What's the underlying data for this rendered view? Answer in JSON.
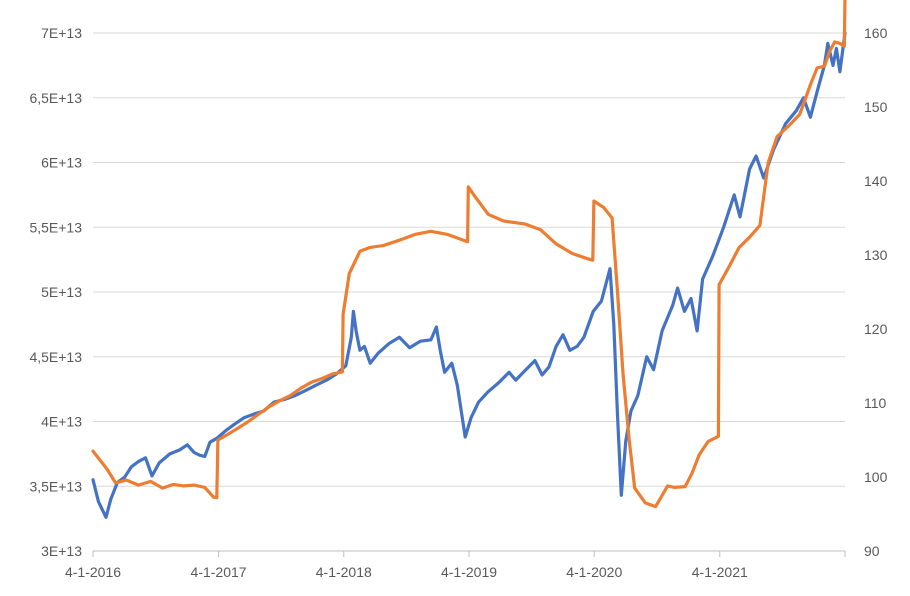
{
  "chart_data": {
    "type": "line",
    "title": "",
    "xlabel": "",
    "ylabel": "",
    "y2label": "",
    "grid": true,
    "legend": "none",
    "x_ticks": [
      "4-1-2016",
      "4-1-2017",
      "4-1-2018",
      "4-1-2019",
      "4-1-2020",
      "4-1-2021"
    ],
    "y_ticks": [
      "3E+13",
      "3,5E+13",
      "4E+13",
      "4,5E+13",
      "5E+13",
      "5,5E+13",
      "6E+13",
      "6,5E+13",
      "7E+13"
    ],
    "y2_ticks": [
      "90",
      "100",
      "110",
      "120",
      "130",
      "140",
      "150",
      "160"
    ],
    "ylim": [
      30000000000000,
      70000000000000
    ],
    "y2lim": [
      90,
      160
    ],
    "xlim": [
      "2016-01-04",
      "2022-01-04"
    ],
    "series": [
      {
        "axis": "left",
        "color": "#4472C4",
        "points": [
          [
            "2016-01-04",
            35500000000000.0
          ],
          [
            "2016-01-20",
            33800000000000.0
          ],
          [
            "2016-02-11",
            32600000000000.0
          ],
          [
            "2016-02-25",
            34000000000000.0
          ],
          [
            "2016-03-15",
            35300000000000.0
          ],
          [
            "2016-04-05",
            35700000000000.0
          ],
          [
            "2016-04-25",
            36500000000000.0
          ],
          [
            "2016-05-15",
            36900000000000.0
          ],
          [
            "2016-06-05",
            37200000000000.0
          ],
          [
            "2016-06-24",
            35800000000000.0
          ],
          [
            "2016-07-15",
            36800000000000.0
          ],
          [
            "2016-08-15",
            37500000000000.0
          ],
          [
            "2016-09-12",
            37800000000000.0
          ],
          [
            "2016-10-05",
            38200000000000.0
          ],
          [
            "2016-10-25",
            37600000000000.0
          ],
          [
            "2016-11-10",
            37400000000000.0
          ],
          [
            "2016-11-25",
            37300000000000.0
          ],
          [
            "2016-12-10",
            38400000000000.0
          ],
          [
            "2016-12-30",
            38700000000000.0
          ],
          [
            "2017-01-25",
            39300000000000.0
          ],
          [
            "2017-02-20",
            39800000000000.0
          ],
          [
            "2017-03-20",
            40300000000000.0
          ],
          [
            "2017-04-20",
            40600000000000.0
          ],
          [
            "2017-05-15",
            40800000000000.0
          ],
          [
            "2017-06-15",
            41500000000000.0
          ],
          [
            "2017-07-15",
            41700000000000.0
          ],
          [
            "2017-08-15",
            42000000000000.0
          ],
          [
            "2017-09-15",
            42400000000000.0
          ],
          [
            "2017-10-15",
            42800000000000.0
          ],
          [
            "2017-11-15",
            43200000000000.0
          ],
          [
            "2017-12-15",
            43700000000000.0
          ],
          [
            "2018-01-10",
            44300000000000.0
          ],
          [
            "2018-01-26",
            46500000000000.0
          ],
          [
            "2018-02-01",
            48500000000000.0
          ],
          [
            "2018-02-09",
            47000000000000.0
          ],
          [
            "2018-02-20",
            45500000000000.0
          ],
          [
            "2018-03-05",
            45800000000000.0
          ],
          [
            "2018-03-22",
            44500000000000.0
          ],
          [
            "2018-04-15",
            45300000000000.0
          ],
          [
            "2018-05-15",
            46000000000000.0
          ],
          [
            "2018-06-15",
            46500000000000.0
          ],
          [
            "2018-07-15",
            45700000000000.0
          ],
          [
            "2018-08-15",
            46200000000000.0
          ],
          [
            "2018-09-15",
            46300000000000.0
          ],
          [
            "2018-10-01",
            47300000000000.0
          ],
          [
            "2018-10-12",
            45500000000000.0
          ],
          [
            "2018-10-25",
            43800000000000.0
          ],
          [
            "2018-11-15",
            44500000000000.0
          ],
          [
            "2018-12-01",
            42800000000000.0
          ],
          [
            "2018-12-24",
            38800000000000.0
          ],
          [
            "2019-01-10",
            40300000000000.0
          ],
          [
            "2019-02-01",
            41500000000000.0
          ],
          [
            "2019-03-01",
            42300000000000.0
          ],
          [
            "2019-04-01",
            43000000000000.0
          ],
          [
            "2019-05-01",
            43800000000000.0
          ],
          [
            "2019-05-20",
            43200000000000.0
          ],
          [
            "2019-06-15",
            43900000000000.0
          ],
          [
            "2019-07-15",
            44700000000000.0
          ],
          [
            "2019-08-05",
            43600000000000.0
          ],
          [
            "2019-08-25",
            44200000000000.0
          ],
          [
            "2019-09-15",
            45800000000000.0
          ],
          [
            "2019-10-05",
            46700000000000.0
          ],
          [
            "2019-10-25",
            45500000000000.0
          ],
          [
            "2019-11-15",
            45800000000000.0
          ],
          [
            "2019-12-05",
            46500000000000.0
          ],
          [
            "2020-01-01",
            48500000000000.0
          ],
          [
            "2020-01-25",
            49300000000000.0
          ],
          [
            "2020-02-19",
            51800000000000.0
          ],
          [
            "2020-03-01",
            47500000000000.0
          ],
          [
            "2020-03-12",
            40500000000000.0
          ],
          [
            "2020-03-23",
            34300000000000.0
          ],
          [
            "2020-04-05",
            38500000000000.0
          ],
          [
            "2020-04-20",
            40800000000000.0
          ],
          [
            "2020-05-10",
            42000000000000.0
          ],
          [
            "2020-06-05",
            45000000000000.0
          ],
          [
            "2020-06-25",
            44000000000000.0
          ],
          [
            "2020-07-20",
            47000000000000.0
          ],
          [
            "2020-08-20",
            49000000000000.0
          ],
          [
            "2020-09-03",
            50300000000000.0
          ],
          [
            "2020-09-23",
            48500000000000.0
          ],
          [
            "2020-10-12",
            49500000000000.0
          ],
          [
            "2020-10-30",
            47000000000000.0
          ],
          [
            "2020-11-15",
            51000000000000.0
          ],
          [
            "2020-12-15",
            52800000000000.0
          ],
          [
            "2021-01-15",
            55000000000000.0
          ],
          [
            "2021-02-15",
            57500000000000.0
          ],
          [
            "2021-03-04",
            55800000000000.0
          ],
          [
            "2021-04-01",
            59500000000000.0
          ],
          [
            "2021-04-20",
            60500000000000.0
          ],
          [
            "2021-05-12",
            58800000000000.0
          ],
          [
            "2021-06-10",
            61000000000000.0
          ],
          [
            "2021-07-15",
            63000000000000.0
          ],
          [
            "2021-08-15",
            64000000000000.0
          ],
          [
            "2021-09-05",
            65000000000000.0
          ],
          [
            "2021-09-25",
            63500000000000.0
          ],
          [
            "2021-10-15",
            65500000000000.0
          ],
          [
            "2021-11-05",
            67500000000000.0
          ],
          [
            "2021-11-15",
            69200000000000.0
          ],
          [
            "2021-11-30",
            67500000000000.0
          ],
          [
            "2021-12-10",
            68800000000000.0
          ],
          [
            "2021-12-20",
            67000000000000.0
          ],
          [
            "2022-01-04",
            70000000000000.0
          ]
        ]
      },
      {
        "axis": "right",
        "color": "#ED7D31",
        "points": [
          [
            "2016-01-04",
            103.5
          ],
          [
            "2016-02-15",
            101.0
          ],
          [
            "2016-03-10",
            99.2
          ],
          [
            "2016-04-10",
            99.6
          ],
          [
            "2016-05-15",
            98.9
          ],
          [
            "2016-06-20",
            99.4
          ],
          [
            "2016-07-25",
            98.5
          ],
          [
            "2016-08-25",
            99.0
          ],
          [
            "2016-09-25",
            98.8
          ],
          [
            "2016-10-25",
            98.9
          ],
          [
            "2016-11-25",
            98.6
          ],
          [
            "2016-12-20",
            97.3
          ],
          [
            "2016-12-30",
            97.2
          ],
          [
            "2017-01-02",
            105.0
          ],
          [
            "2017-02-01",
            105.8
          ],
          [
            "2017-03-01",
            106.6
          ],
          [
            "2017-04-01",
            107.5
          ],
          [
            "2017-05-01",
            108.5
          ],
          [
            "2017-06-01",
            109.5
          ],
          [
            "2017-07-01",
            110.3
          ],
          [
            "2017-08-01",
            111.0
          ],
          [
            "2017-09-01",
            112.0
          ],
          [
            "2017-10-01",
            112.8
          ],
          [
            "2017-11-01",
            113.3
          ],
          [
            "2017-12-01",
            113.9
          ],
          [
            "2017-12-31",
            114.2
          ],
          [
            "2018-01-02",
            122.0
          ],
          [
            "2018-01-20",
            127.5
          ],
          [
            "2018-02-20",
            130.5
          ],
          [
            "2018-03-20",
            131.0
          ],
          [
            "2018-05-01",
            131.3
          ],
          [
            "2018-06-15",
            132.0
          ],
          [
            "2018-08-01",
            132.8
          ],
          [
            "2018-09-15",
            133.2
          ],
          [
            "2018-11-01",
            132.8
          ],
          [
            "2018-12-31",
            131.8
          ],
          [
            "2019-01-02",
            139.2
          ],
          [
            "2019-01-20",
            138.0
          ],
          [
            "2019-03-01",
            135.5
          ],
          [
            "2019-04-15",
            134.6
          ],
          [
            "2019-06-15",
            134.2
          ],
          [
            "2019-08-01",
            133.4
          ],
          [
            "2019-09-15",
            131.5
          ],
          [
            "2019-11-01",
            130.2
          ],
          [
            "2019-12-15",
            129.5
          ],
          [
            "2019-12-31",
            129.3
          ],
          [
            "2020-01-03",
            137.3
          ],
          [
            "2020-02-01",
            136.4
          ],
          [
            "2020-02-25",
            135.0
          ],
          [
            "2020-03-12",
            125.0
          ],
          [
            "2020-03-28",
            114.0
          ],
          [
            "2020-04-15",
            105.0
          ],
          [
            "2020-05-01",
            98.5
          ],
          [
            "2020-06-01",
            96.5
          ],
          [
            "2020-07-01",
            96.0
          ],
          [
            "2020-07-20",
            97.5
          ],
          [
            "2020-08-05",
            98.8
          ],
          [
            "2020-08-25",
            98.6
          ],
          [
            "2020-09-25",
            98.7
          ],
          [
            "2020-10-15",
            100.5
          ],
          [
            "2020-11-05",
            103.0
          ],
          [
            "2020-12-01",
            104.8
          ],
          [
            "2020-12-31",
            105.5
          ],
          [
            "2021-01-02",
            126.0
          ],
          [
            "2021-02-01",
            128.5
          ],
          [
            "2021-03-01",
            131.0
          ],
          [
            "2021-04-01",
            132.4
          ],
          [
            "2021-05-01",
            134.0
          ],
          [
            "2021-05-25",
            142.5
          ],
          [
            "2021-06-20",
            146.0
          ],
          [
            "2021-07-25",
            147.5
          ],
          [
            "2021-08-25",
            149.0
          ],
          [
            "2021-09-25",
            153.0
          ],
          [
            "2021-10-15",
            155.3
          ],
          [
            "2021-11-05",
            155.5
          ],
          [
            "2021-11-20",
            157.5
          ],
          [
            "2021-12-05",
            158.8
          ],
          [
            "2021-12-20",
            158.6
          ],
          [
            "2022-01-02",
            158.2
          ],
          [
            "2022-01-04",
            164.8
          ]
        ]
      }
    ]
  }
}
